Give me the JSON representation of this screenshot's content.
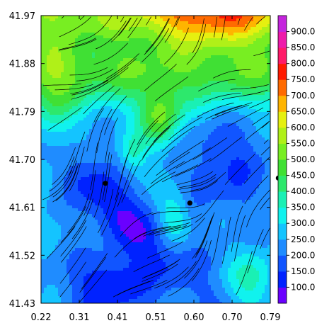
{
  "chart_data": {
    "type": "heatmap",
    "title": "",
    "xlabel": "",
    "ylabel": "",
    "xlim": [
      0.22,
      0.79
    ],
    "ylim": [
      41.43,
      41.97
    ],
    "x_ticks": [
      "0.22",
      "0.31",
      "0.41",
      "0.51",
      "0.60",
      "0.70",
      "0.79"
    ],
    "y_ticks": [
      "41.97",
      "41.88",
      "41.79",
      "41.70",
      "41.61",
      "41.52",
      "41.43"
    ],
    "overlay": "streamlines",
    "colorbar": {
      "levels": [
        "100.0",
        "150.0",
        "200.0",
        "250.0",
        "300.0",
        "350.0",
        "400.0",
        "450.0",
        "500.0",
        "550.0",
        "600.0",
        "650.0",
        "700.0",
        "750.0",
        "800.0",
        "850.0",
        "900.0"
      ],
      "colors": [
        "#6a00ff",
        "#0022ff",
        "#1155ff",
        "#1f8cff",
        "#14c4ff",
        "#10f2ee",
        "#1af0b4",
        "#2de86c",
        "#40e034",
        "#78ee22",
        "#b0f018",
        "#e6f010",
        "#ffb400",
        "#ff6a00",
        "#ff1a00",
        "#ff1a68",
        "#ee1aaa",
        "#c424dd"
      ]
    },
    "markers": [
      {
        "x": 0.38,
        "y": 41.655
      },
      {
        "x": 0.59,
        "y": 41.618
      },
      {
        "x": 0.81,
        "y": 41.665
      }
    ],
    "grid": false
  }
}
